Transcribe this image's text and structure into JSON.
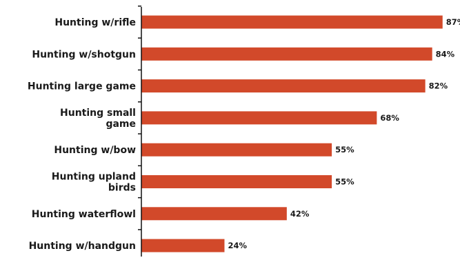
{
  "chart_data": {
    "type": "bar",
    "orientation": "horizontal",
    "categories": [
      "Hunting w/rifle",
      "Hunting w/shotgun",
      "Hunting large game",
      "Hunting small game",
      "Hunting w/bow",
      "Hunting upland birds",
      "Hunting waterflowl",
      "Hunting w/handgun"
    ],
    "values": [
      87,
      84,
      82,
      68,
      55,
      55,
      42,
      24
    ],
    "value_labels": [
      "87%",
      "84%",
      "82%",
      "68%",
      "55%",
      "55%",
      "42%",
      "24%"
    ],
    "bar_color": "#d2492a",
    "xlim": [
      0,
      100
    ],
    "grid": false,
    "legend": "none"
  }
}
